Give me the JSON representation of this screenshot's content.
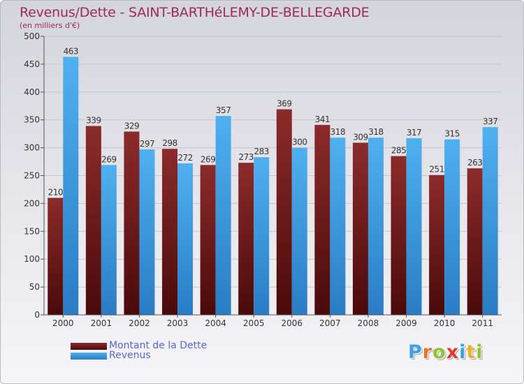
{
  "title": "Revenus/Dette - SAINT-BARTHéLEMY-DE-BELLEGARDE",
  "subtitle": "(en milliers d'€)",
  "logo": {
    "letters": [
      "P",
      "r",
      "o",
      "x",
      "i",
      "t",
      "i"
    ],
    "letter_colors": [
      "#3fa0e0",
      "#e8742a",
      "#8fc43a",
      "#e03a2a",
      "#3fa0e0",
      "#e8b32a",
      "#8fc43a"
    ]
  },
  "colors": {
    "dette": "#7c1c1c",
    "revenus": "#3aa0e8",
    "grid": "#c5c5cc",
    "axis_text": "#333333"
  },
  "chart_data": {
    "type": "bar",
    "categories": [
      "2000",
      "2001",
      "2002",
      "2003",
      "2004",
      "2005",
      "2006",
      "2007",
      "2008",
      "2009",
      "2010",
      "2011"
    ],
    "series": [
      {
        "name": "Montant de la Dette",
        "values": [
          210,
          339,
          329,
          298,
          269,
          273,
          369,
          341,
          309,
          285,
          251,
          263
        ]
      },
      {
        "name": "Revenus",
        "values": [
          463,
          269,
          297,
          272,
          357,
          283,
          300,
          318,
          318,
          317,
          315,
          337
        ]
      }
    ],
    "ylim": [
      0,
      500
    ],
    "yticks": [
      "0",
      "50",
      "100",
      "150",
      "200",
      "250",
      "300",
      "350",
      "400",
      "450",
      "500"
    ],
    "grid": true,
    "legend_position": "bottom-left"
  }
}
